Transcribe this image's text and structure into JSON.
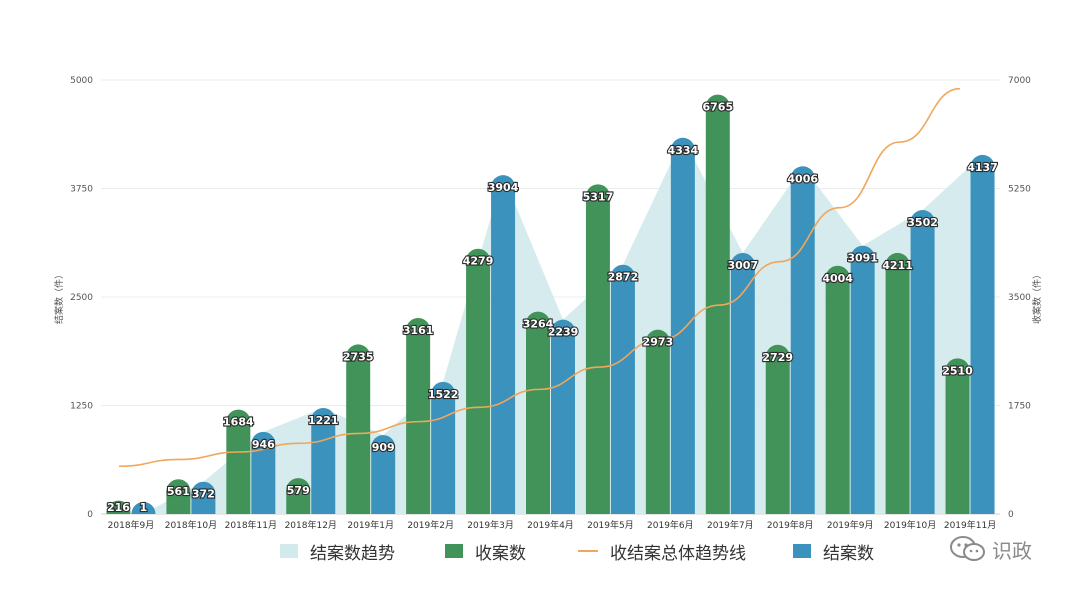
{
  "chart_data": {
    "type": "bar",
    "categories": [
      "2018年9月",
      "2018年10月",
      "2018年11月",
      "2018年12月",
      "2019年1月",
      "2019年2月",
      "2019年3月",
      "2019年4月",
      "2019年5月",
      "2019年6月",
      "2019年7月",
      "2019年8月",
      "2019年9月",
      "2019年10月",
      "2019年11月"
    ],
    "ylabel": "结案数（件）",
    "y2label": "收案数（件）",
    "ylim": [
      0,
      5000
    ],
    "y2lim": [
      0,
      7000
    ],
    "yticks": [
      "0",
      "1250",
      "2500",
      "3750",
      "5000"
    ],
    "y2ticks": [
      "0",
      "1750",
      "3500",
      "5250",
      "7000"
    ],
    "grid": true,
    "legend_position": "bottom",
    "series": [
      {
        "name": "结案数趋势",
        "kind": "area",
        "axis": "left",
        "color": "#d3eaec",
        "values": [
          1,
          372,
          946,
          1221,
          909,
          1522,
          3904,
          2239,
          2872,
          4334,
          3007,
          4006,
          3091,
          3502,
          4137
        ]
      },
      {
        "name": "收案数",
        "kind": "bar",
        "axis": "right",
        "color": "#419359",
        "values": [
          216,
          561,
          1684,
          579,
          2735,
          3161,
          4279,
          3264,
          5317,
          2973,
          6765,
          2729,
          4004,
          4211,
          2510
        ]
      },
      {
        "name": "收结案总体趋势线",
        "kind": "line",
        "axis": "right",
        "color": "#f0a65b",
        "values": [
          770,
          880,
          1000,
          1140,
          1300,
          1490,
          1720,
          2010,
          2370,
          2810,
          3370,
          4070,
          4940,
          6000,
          7300
        ]
      },
      {
        "name": "结案数",
        "kind": "bar",
        "axis": "left",
        "color": "#3a92bd",
        "values": [
          1,
          372,
          946,
          1221,
          909,
          1522,
          3904,
          2239,
          2872,
          4334,
          3007,
          4006,
          3091,
          3502,
          4137
        ]
      }
    ]
  },
  "watermark": {
    "text": "识政",
    "icon": "wechat-icon"
  }
}
